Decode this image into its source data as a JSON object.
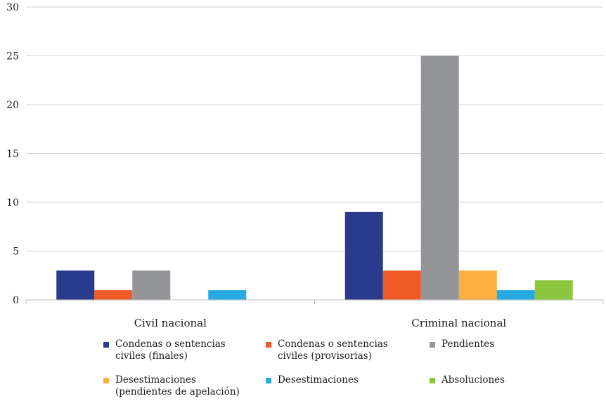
{
  "chart_data": {
    "type": "bar",
    "title": "",
    "xlabel": "",
    "ylabel": "",
    "ylim": [
      0,
      30
    ],
    "yticks": [
      "0",
      "5",
      "10",
      "15",
      "20",
      "25",
      "30"
    ],
    "grid": true,
    "legend_position": "bottom",
    "categories": [
      "Civil nacional",
      "Criminal nacional"
    ],
    "series": [
      {
        "name": "Condenas o sentencias\nciviles (finales)",
        "color": "#2a3a8c",
        "values": [
          3,
          9
        ]
      },
      {
        "name": "Condenas o sentencias\nciviles (provisorias)",
        "color": "#f05a28",
        "values": [
          1,
          3
        ]
      },
      {
        "name": "Pendientes",
        "color": "#939598",
        "values": [
          3,
          25
        ]
      },
      {
        "name": "Desestimaciones\n(pendientes de apelación)",
        "color": "#fbb040",
        "values": [
          0,
          3
        ]
      },
      {
        "name": "Desestimaciones",
        "color": "#27aae1",
        "values": [
          1,
          1
        ]
      },
      {
        "name": "Absoluciones",
        "color": "#8dc63f",
        "values": [
          0,
          2
        ]
      }
    ]
  }
}
